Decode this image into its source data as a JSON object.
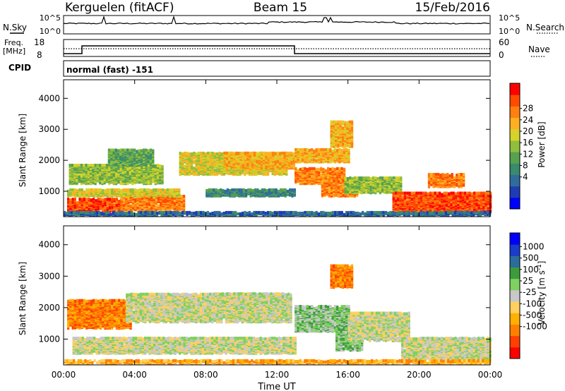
{
  "header": {
    "station": "Kerguelen (fitACF)",
    "beam": "Beam 15",
    "date": "15/Feb/2016"
  },
  "status_panels": {
    "nsky_label": "N.Sky",
    "nsearch_label": "N.Search",
    "noise_ticks_left": [
      "10^5",
      "10^0"
    ],
    "noise_ticks_right": [
      "10^5",
      "10^0"
    ],
    "freq_label": "Freq.",
    "freq_unit": "[MHz]",
    "freq_ticks": [
      "18",
      "8"
    ],
    "nave_label": "Nave",
    "nave_ticks": [
      "60",
      "0"
    ],
    "cpid_label": "CPID",
    "cpid_text": "normal (fast) -151"
  },
  "chart_data": [
    {
      "type": "heatmap",
      "name": "power",
      "ylabel": "Slant Range [km]",
      "xlabel": "Time UT",
      "x_ticks": [
        "00:00",
        "04:00",
        "08:00",
        "12:00",
        "16:00",
        "20:00",
        "00:00"
      ],
      "x_hours": [
        0,
        4,
        8,
        12,
        16,
        20,
        24
      ],
      "y_ticks": [
        1000,
        2000,
        3000,
        4000
      ],
      "ylim": [
        180,
        4600
      ],
      "colorbar": {
        "label": "Power [dB]",
        "ticks": [
          "28",
          "24",
          "20",
          "16",
          "12",
          "8",
          "4"
        ],
        "colors": [
          "#0000ff",
          "#1e3cb4",
          "#2f6c9c",
          "#3a8a6e",
          "#57a14f",
          "#8fbf3c",
          "#d6d22a",
          "#ffb020",
          "#ff8010",
          "#ff4a00",
          "#ff0000"
        ]
      },
      "bands": [
        {
          "t0": 0.2,
          "t1": 3.2,
          "r0": 300,
          "r1": 700,
          "level": 9
        },
        {
          "t0": 3.2,
          "t1": 6.8,
          "r0": 350,
          "r1": 800,
          "level": 8
        },
        {
          "t0": 0.2,
          "t1": 6.5,
          "r0": 800,
          "r1": 1000,
          "level": 6
        },
        {
          "t0": 0.3,
          "t1": 5.5,
          "r0": 1200,
          "r1": 1800,
          "level": 5
        },
        {
          "t0": 2.5,
          "t1": 5.0,
          "r0": 1800,
          "r1": 2300,
          "level": 4
        },
        {
          "t0": 6.5,
          "t1": 12.5,
          "r0": 1500,
          "r1": 2200,
          "level": 6
        },
        {
          "t0": 9.0,
          "t1": 13.0,
          "r0": 1700,
          "r1": 2200,
          "level": 7
        },
        {
          "t0": 8.0,
          "t1": 13.0,
          "r0": 800,
          "r1": 1000,
          "level": 3
        },
        {
          "t0": 13.0,
          "t1": 15.8,
          "r0": 1200,
          "r1": 1700,
          "level": 8
        },
        {
          "t0": 13.0,
          "t1": 16.0,
          "r0": 1900,
          "r1": 2300,
          "level": 7
        },
        {
          "t0": 14.5,
          "t1": 16.5,
          "r0": 800,
          "r1": 1300,
          "level": 8
        },
        {
          "t0": 15.8,
          "t1": 19.0,
          "r0": 900,
          "r1": 1400,
          "level": 5
        },
        {
          "t0": 15.0,
          "t1": 16.2,
          "r0": 2400,
          "r1": 3200,
          "level": 7
        },
        {
          "t0": 18.5,
          "t1": 24.0,
          "r0": 300,
          "r1": 900,
          "level": 9
        },
        {
          "t0": 20.5,
          "t1": 22.5,
          "r0": 1100,
          "r1": 1500,
          "level": 8
        },
        {
          "t0": 0.0,
          "t1": 24.0,
          "r0": 180,
          "r1": 280,
          "level": 2
        }
      ]
    },
    {
      "type": "heatmap",
      "name": "velocity",
      "ylabel": "Slant Range [km]",
      "xlabel": "Time UT",
      "x_ticks": [
        "00:00",
        "04:00",
        "08:00",
        "12:00",
        "16:00",
        "20:00",
        "00:00"
      ],
      "x_hours": [
        0,
        4,
        8,
        12,
        16,
        20,
        24
      ],
      "y_ticks": [
        1000,
        2000,
        3000,
        4000
      ],
      "ylim": [
        180,
        4600
      ],
      "colorbar": {
        "label": "Velocity [m s^-1]",
        "ticks": [
          "1000",
          "500",
          "100",
          "25",
          "-25",
          "-100",
          "-500",
          "-1000"
        ],
        "colors": [
          "#ff0000",
          "#ff4000",
          "#ff8000",
          "#ffb000",
          "#ffd060",
          "#c8c8c8",
          "#7fd060",
          "#3c9c3c",
          "#2c6c9c",
          "#1a3cc8",
          "#0000ff"
        ]
      },
      "bands": [
        {
          "t0": 0.2,
          "t1": 3.8,
          "r0": 1300,
          "r1": 2200,
          "level": 2
        },
        {
          "t0": 0.5,
          "t1": 13.0,
          "r0": 500,
          "r1": 1000,
          "level": 5
        },
        {
          "t0": 3.5,
          "t1": 12.8,
          "r0": 1500,
          "r1": 2400,
          "level": 5
        },
        {
          "t0": 8.5,
          "t1": 12.5,
          "r0": 1800,
          "r1": 2400,
          "level": 5
        },
        {
          "t0": 13.0,
          "t1": 16.0,
          "r0": 1200,
          "r1": 2000,
          "level": 6
        },
        {
          "t0": 15.3,
          "t1": 16.8,
          "r0": 600,
          "r1": 1300,
          "level": 6
        },
        {
          "t0": 16.0,
          "t1": 19.5,
          "r0": 900,
          "r1": 1800,
          "level": 5
        },
        {
          "t0": 19.0,
          "t1": 24.0,
          "r0": 300,
          "r1": 1000,
          "level": 5
        },
        {
          "t0": 15.0,
          "t1": 16.2,
          "r0": 2600,
          "r1": 3300,
          "level": 2
        },
        {
          "t0": 0.0,
          "t1": 24.0,
          "r0": 180,
          "r1": 280,
          "level": 3
        }
      ]
    }
  ]
}
